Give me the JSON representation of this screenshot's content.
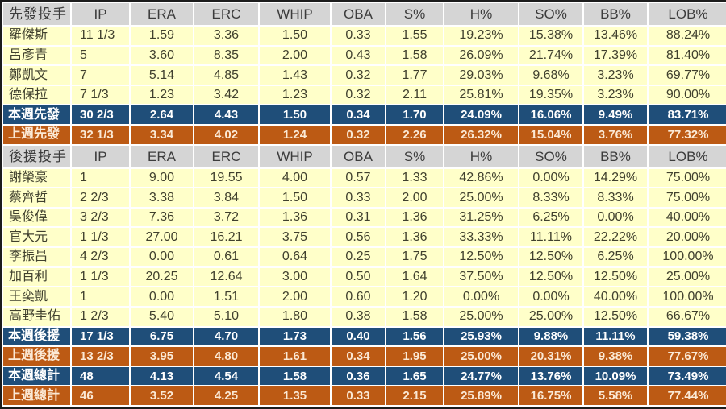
{
  "title": "pitcher-weekly-stats",
  "colors": {
    "header_bg": "#d5d5d5",
    "data_row_bg": "#ffffc9",
    "this_week_bg": "#1f4e79",
    "last_week_bg": "#bc5a14",
    "grid_line": "#ffffff",
    "outer_border": "#1c1c1c",
    "data_text": "#40402e",
    "this_week_text": "#ffffff",
    "last_week_text": "#fbe9d5"
  },
  "chart_data": {
    "type": "table",
    "columns": [
      "IP",
      "ERA",
      "ERC",
      "WHIP",
      "OBA",
      "S%",
      "H%",
      "SO%",
      "BB%",
      "LOB%"
    ],
    "sections": [
      {
        "group_header": "先發投手",
        "rows": [
          {
            "name": "羅傑斯",
            "values": [
              "11 1/3",
              "1.59",
              "3.36",
              "1.50",
              "0.33",
              "1.55",
              "19.23%",
              "15.38%",
              "13.46%",
              "88.24%"
            ]
          },
          {
            "name": "呂彥青",
            "values": [
              "5",
              "3.60",
              "8.35",
              "2.00",
              "0.43",
              "1.58",
              "26.09%",
              "21.74%",
              "17.39%",
              "81.40%"
            ]
          },
          {
            "name": "鄭凱文",
            "values": [
              "7",
              "5.14",
              "4.85",
              "1.43",
              "0.32",
              "1.77",
              "29.03%",
              "9.68%",
              "3.23%",
              "69.77%"
            ]
          },
          {
            "name": "德保拉",
            "values": [
              "7 1/3",
              "1.23",
              "3.42",
              "1.23",
              "0.32",
              "2.11",
              "25.81%",
              "19.35%",
              "3.23%",
              "90.00%"
            ]
          }
        ],
        "summary_rows": [
          {
            "name": "本週先發",
            "theme": "blue",
            "values": [
              "30 2/3",
              "2.64",
              "4.43",
              "1.50",
              "0.34",
              "1.70",
              "24.09%",
              "16.06%",
              "9.49%",
              "83.71%"
            ]
          },
          {
            "name": "上週先發",
            "theme": "orange",
            "values": [
              "32 1/3",
              "3.34",
              "4.02",
              "1.24",
              "0.32",
              "2.26",
              "26.32%",
              "15.04%",
              "3.76%",
              "77.32%"
            ]
          }
        ]
      },
      {
        "group_header": "後援投手",
        "rows": [
          {
            "name": "謝榮豪",
            "values": [
              "1",
              "9.00",
              "19.55",
              "4.00",
              "0.57",
              "1.33",
              "42.86%",
              "0.00%",
              "14.29%",
              "75.00%"
            ]
          },
          {
            "name": "蔡齊哲",
            "values": [
              "2 2/3",
              "3.38",
              "3.84",
              "1.50",
              "0.33",
              "2.00",
              "25.00%",
              "8.33%",
              "8.33%",
              "75.00%"
            ]
          },
          {
            "name": "吳俊偉",
            "values": [
              "3 2/3",
              "7.36",
              "3.72",
              "1.36",
              "0.31",
              "1.36",
              "31.25%",
              "6.25%",
              "0.00%",
              "40.00%"
            ]
          },
          {
            "name": "官大元",
            "values": [
              "1 1/3",
              "27.00",
              "16.21",
              "3.75",
              "0.56",
              "1.36",
              "33.33%",
              "11.11%",
              "22.22%",
              "20.00%"
            ]
          },
          {
            "name": "李振昌",
            "values": [
              "4 2/3",
              "0.00",
              "0.61",
              "0.64",
              "0.25",
              "1.75",
              "12.50%",
              "12.50%",
              "6.25%",
              "100.00%"
            ]
          },
          {
            "name": "加百利",
            "values": [
              "1 1/3",
              "20.25",
              "12.64",
              "3.00",
              "0.50",
              "1.64",
              "37.50%",
              "12.50%",
              "12.50%",
              "25.00%"
            ]
          },
          {
            "name": "王奕凱",
            "values": [
              "1",
              "0.00",
              "1.51",
              "2.00",
              "0.60",
              "1.20",
              "0.00%",
              "0.00%",
              "40.00%",
              "100.00%"
            ]
          },
          {
            "name": "高野圭佑",
            "values": [
              "1 2/3",
              "5.40",
              "5.10",
              "1.80",
              "0.38",
              "1.58",
              "25.00%",
              "25.00%",
              "12.50%",
              "66.67%"
            ]
          }
        ],
        "summary_rows": [
          {
            "name": "本週後援",
            "theme": "blue",
            "values": [
              "17 1/3",
              "6.75",
              "4.70",
              "1.73",
              "0.40",
              "1.56",
              "25.93%",
              "9.88%",
              "11.11%",
              "59.38%"
            ]
          },
          {
            "name": "上週後援",
            "theme": "orange",
            "values": [
              "13 2/3",
              "3.95",
              "4.80",
              "1.61",
              "0.34",
              "1.95",
              "25.00%",
              "20.31%",
              "9.38%",
              "77.67%"
            ]
          },
          {
            "name": "本週總計",
            "theme": "blue",
            "values": [
              "48",
              "4.13",
              "4.54",
              "1.58",
              "0.36",
              "1.65",
              "24.77%",
              "13.76%",
              "10.09%",
              "73.49%"
            ]
          },
          {
            "name": "上週總計",
            "theme": "orange",
            "values": [
              "46",
              "3.52",
              "4.25",
              "1.35",
              "0.33",
              "2.15",
              "25.89%",
              "16.75%",
              "5.58%",
              "77.44%"
            ]
          }
        ]
      }
    ]
  }
}
